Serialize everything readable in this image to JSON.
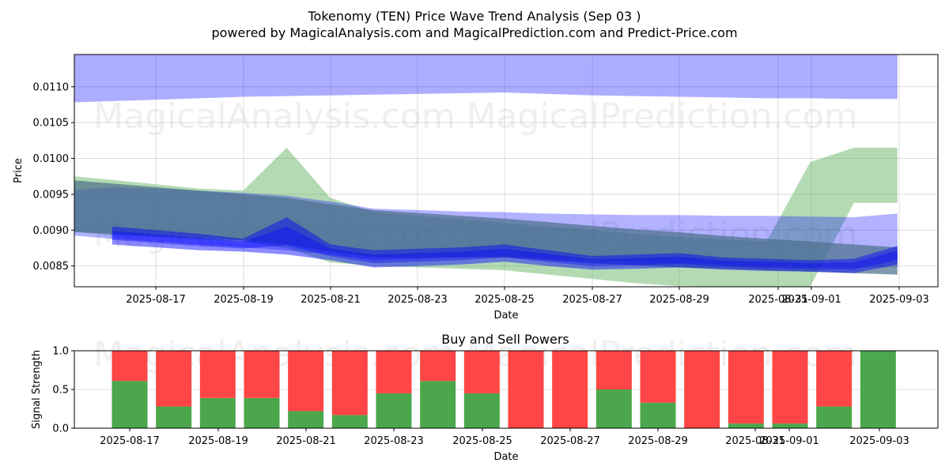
{
  "title_line1": "Tokenomy (TEN) Price Wave Trend Analysis (Sep 03 )",
  "title_line2": "powered by MagicalAnalysis.com and MagicalPrediction.com and Predict-Price.com",
  "watermarks": [
    "MagicalAnalysis.com",
    "MagicalPrediction.com"
  ],
  "colors": {
    "green_band": "#4ca64c",
    "blue_band": "#0000ff",
    "steel_band": "#4a6f8a",
    "buy": "#4ca64c",
    "sell": "#ff4545"
  },
  "chart_data": [
    {
      "type": "area",
      "xlabel": "Date",
      "ylabel": "Price",
      "ylim": [
        0.00821,
        0.01145
      ],
      "yticks": [
        "0.0085",
        "0.0090",
        "0.0095",
        "0.0100",
        "0.0105",
        "0.0110"
      ],
      "xticks": [
        "2025-08-17",
        "2025-08-19",
        "2025-08-21",
        "2025-08-23",
        "2025-08-25",
        "2025-08-27",
        "2025-08-29",
        "2025-08-31",
        "2025-09-01",
        "2025-09-03"
      ],
      "grid": true,
      "x_dates": [
        "2025-08-15",
        "2025-08-16",
        "2025-08-17",
        "2025-08-18",
        "2025-08-19",
        "2025-08-20",
        "2025-08-21",
        "2025-08-22",
        "2025-08-23",
        "2025-08-24",
        "2025-08-25",
        "2025-08-26",
        "2025-08-27",
        "2025-08-28",
        "2025-08-29",
        "2025-08-30",
        "2025-08-31",
        "2025-09-01",
        "2025-09-02",
        "2025-09-03"
      ],
      "series": [
        {
          "name": "",
          "role": "upper-blue-band",
          "upper": [
            0.01145,
            0.01145,
            0.01145,
            0.01145,
            0.01145,
            0.01145,
            0.01145,
            0.01145,
            0.01145,
            0.01145,
            0.01145,
            0.01145,
            0.01145,
            0.01145,
            0.01145,
            0.01145,
            0.01145,
            0.01145,
            0.01145,
            0.01145
          ],
          "lower": [
            0.01078,
            0.0108,
            0.01082,
            0.01084,
            0.01086,
            0.01087,
            0.01088,
            0.01089,
            0.0109,
            0.01091,
            0.01092,
            0.0109,
            0.01088,
            0.01087,
            0.01086,
            0.01085,
            0.01084,
            0.01084,
            0.01083,
            0.01083
          ]
        },
        {
          "name": "",
          "role": "green-band",
          "upper": [
            0.00976,
            0.0097,
            0.00964,
            0.00958,
            0.00955,
            0.01015,
            0.00945,
            0.00925,
            0.0092,
            0.00915,
            0.0091,
            0.00905,
            0.009,
            0.00895,
            0.0089,
            0.00887,
            0.00884,
            0.00995,
            0.01015,
            0.01015
          ],
          "lower": [
            0.00898,
            0.00893,
            0.0089,
            0.00887,
            0.00884,
            0.00875,
            0.00855,
            0.0085,
            0.00848,
            0.00846,
            0.00844,
            0.00838,
            0.00832,
            0.00826,
            0.00822,
            0.00821,
            0.00821,
            0.00821,
            0.00938,
            0.00938
          ]
        },
        {
          "name": "",
          "role": "wide-blue-band",
          "upper": [
            0.00955,
            0.0096,
            0.00958,
            0.00955,
            0.00952,
            0.00948,
            0.0094,
            0.0093,
            0.00928,
            0.00926,
            0.00925,
            0.00923,
            0.00922,
            0.00921,
            0.00921,
            0.0092,
            0.0092,
            0.00919,
            0.00918,
            0.00923
          ],
          "lower": [
            0.00893,
            0.00888,
            0.00884,
            0.0088,
            0.00876,
            0.00872,
            0.00866,
            0.00858,
            0.0086,
            0.00862,
            0.00864,
            0.0086,
            0.00858,
            0.00856,
            0.00854,
            0.00852,
            0.0085,
            0.00849,
            0.00848,
            0.00848
          ]
        },
        {
          "name": "",
          "role": "steel-trend-band",
          "upper": [
            0.0097,
            0.00965,
            0.0096,
            0.00955,
            0.0095,
            0.00945,
            0.00936,
            0.00928,
            0.00924,
            0.0092,
            0.00916,
            0.00911,
            0.00906,
            0.00901,
            0.00897,
            0.00892,
            0.00888,
            0.00884,
            0.0088,
            0.00876
          ],
          "lower": [
            0.00898,
            0.00895,
            0.00892,
            0.00889,
            0.00886,
            0.0088,
            0.0087,
            0.00862,
            0.00862,
            0.00862,
            0.00862,
            0.00858,
            0.00854,
            0.00851,
            0.00848,
            0.00846,
            0.00844,
            0.00842,
            0.0084,
            0.00838
          ]
        },
        {
          "name": "",
          "role": "core-blue-wave",
          "upper": [
            null,
            0.00905,
            0.009,
            0.00895,
            0.00888,
            0.00918,
            0.0088,
            0.00872,
            0.00874,
            0.00876,
            0.0088,
            0.00872,
            0.00864,
            0.00866,
            0.00868,
            0.00862,
            0.0086,
            0.00858,
            0.0086,
            0.00878
          ],
          "lower": [
            null,
            0.0088,
            0.00876,
            0.00872,
            0.0087,
            0.00866,
            0.00858,
            0.00848,
            0.0085,
            0.00852,
            0.00856,
            0.0085,
            0.00845,
            0.00846,
            0.00848,
            0.00845,
            0.00843,
            0.00842,
            0.0084,
            0.00852
          ]
        }
      ]
    },
    {
      "type": "bar",
      "title": "Buy and Sell Powers",
      "xlabel": "Date",
      "ylabel": "Signal Strength",
      "ylim": [
        0.0,
        1.0
      ],
      "yticks": [
        "0.0",
        "0.5",
        "1.0"
      ],
      "xticks": [
        "2025-08-17",
        "2025-08-19",
        "2025-08-21",
        "2025-08-23",
        "2025-08-25",
        "2025-08-27",
        "2025-08-29",
        "2025-08-31",
        "2025-09-01",
        "2025-09-03"
      ],
      "grid": true,
      "categories": [
        "2025-08-17",
        "2025-08-18",
        "2025-08-19",
        "2025-08-20",
        "2025-08-21",
        "2025-08-22",
        "2025-08-23",
        "2025-08-24",
        "2025-08-25",
        "2025-08-26",
        "2025-08-27",
        "2025-08-28",
        "2025-08-29",
        "2025-08-30",
        "2025-08-31",
        "2025-09-01",
        "2025-09-02",
        "2025-09-03"
      ],
      "series": [
        {
          "name": "",
          "role": "buy",
          "values": [
            0.61,
            0.28,
            0.39,
            0.39,
            0.22,
            0.17,
            0.45,
            0.61,
            0.45,
            0.0,
            0.0,
            0.5,
            0.33,
            0.0,
            0.06,
            0.06,
            0.28,
            1.0
          ]
        },
        {
          "name": "",
          "role": "sell",
          "values": [
            0.39,
            0.72,
            0.61,
            0.61,
            0.78,
            0.83,
            0.55,
            0.39,
            0.55,
            1.0,
            1.0,
            0.5,
            0.67,
            1.0,
            0.94,
            0.94,
            0.72,
            0.0
          ]
        }
      ]
    }
  ]
}
